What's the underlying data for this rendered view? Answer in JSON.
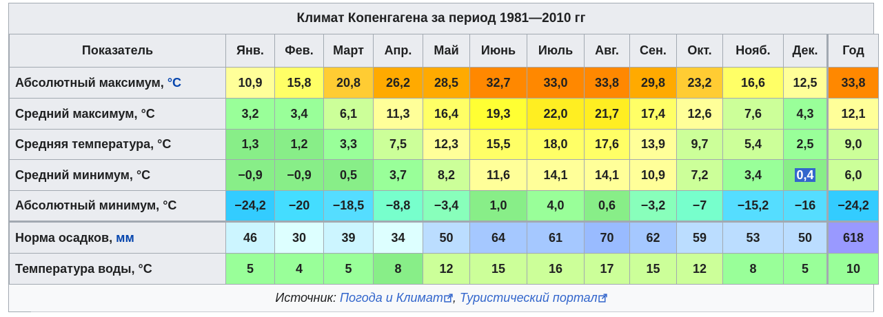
{
  "table": {
    "title": "Климат Копенгагена за период 1981—2010 гг",
    "header_label": "Показатель",
    "months": [
      "Янв.",
      "Фев.",
      "Март",
      "Апр.",
      "Май",
      "Июнь",
      "Июль",
      "Авг.",
      "Сен.",
      "Окт.",
      "Нояб.",
      "Дек."
    ],
    "year_label": "Год",
    "rows": [
      {
        "label": "Абсолютный максимум,",
        "unit": "°C",
        "unit_is_link": true,
        "values": [
          "10,9",
          "15,8",
          "20,8",
          "26,2",
          "28,5",
          "32,7",
          "33,0",
          "33,8",
          "29,8",
          "23,2",
          "16,6",
          "12,5"
        ],
        "year": "33,8",
        "colors": [
          "#ffff99",
          "#ffff66",
          "#ffcc33",
          "#ffaa00",
          "#ffaa00",
          "#ff8800",
          "#ff8800",
          "#ff8800",
          "#ffaa00",
          "#ffcc33",
          "#ffff66",
          "#ffff99"
        ],
        "year_color": "#ff8800"
      },
      {
        "label": "Средний максимум,",
        "unit": "°C",
        "unit_is_link": false,
        "values": [
          "3,2",
          "3,4",
          "6,1",
          "11,3",
          "16,4",
          "19,3",
          "22,0",
          "21,7",
          "17,4",
          "12,6",
          "7,6",
          "4,3"
        ],
        "year": "12,1",
        "colors": [
          "#99ff99",
          "#99ff99",
          "#ccff99",
          "#ffff99",
          "#ffff66",
          "#ffff33",
          "#ffee22",
          "#ffee22",
          "#ffff66",
          "#ffff99",
          "#ccff99",
          "#99ff99"
        ],
        "year_color": "#ffff99"
      },
      {
        "label": "Средняя температура,",
        "unit": "°C",
        "unit_is_link": false,
        "values": [
          "1,3",
          "1,2",
          "3,3",
          "7,5",
          "12,3",
          "15,5",
          "18,0",
          "17,6",
          "13,9",
          "9,7",
          "5,4",
          "2,5"
        ],
        "year": "9,0",
        "colors": [
          "#88ee88",
          "#88ee88",
          "#99ff99",
          "#ccff99",
          "#ffff99",
          "#ffff66",
          "#ffff66",
          "#ffff66",
          "#ffff99",
          "#ccff99",
          "#ccff99",
          "#99ff99"
        ],
        "year_color": "#ccff99"
      },
      {
        "label": "Средний минимум,",
        "unit": "°C",
        "unit_is_link": false,
        "values": [
          "−0,9",
          "−0,9",
          "0,5",
          "3,7",
          "8,2",
          "11,6",
          "14,1",
          "14,1",
          "10,9",
          "7,2",
          "3,4",
          "0,4"
        ],
        "year": "6,0",
        "selected_index": 11,
        "colors": [
          "#88ee88",
          "#88ee88",
          "#88ee88",
          "#99ff99",
          "#ccff99",
          "#ffff99",
          "#ffff99",
          "#ffff99",
          "#ffff99",
          "#ccff99",
          "#99ff99",
          "#88ee88"
        ],
        "year_color": "#ccff99"
      },
      {
        "label": "Абсолютный минимум,",
        "unit": "°C",
        "unit_is_link": false,
        "values": [
          "−24,2",
          "−20",
          "−18,5",
          "−8,8",
          "−3,4",
          "1,0",
          "4,0",
          "0,6",
          "−3,2",
          "−7",
          "−15,2",
          "−16"
        ],
        "year": "−24,2",
        "colors": [
          "#33ccff",
          "#44ddff",
          "#55ddff",
          "#77ffcc",
          "#88ffbb",
          "#88ee88",
          "#99ff99",
          "#88ee88",
          "#88ffbb",
          "#77ffcc",
          "#55ddff",
          "#55ddff"
        ],
        "year_color": "#33ccff"
      },
      {
        "label": "Норма осадков,",
        "unit": "мм",
        "unit_is_link": true,
        "values": [
          "46",
          "30",
          "39",
          "34",
          "50",
          "64",
          "61",
          "70",
          "62",
          "59",
          "53",
          "50"
        ],
        "year": "618",
        "colors": [
          "#ccf5ff",
          "#ddffff",
          "#ccf5ff",
          "#ddffff",
          "#bbddff",
          "#a5c8ff",
          "#a5c8ff",
          "#99bbff",
          "#a5c8ff",
          "#bbddff",
          "#bbddff",
          "#bbddff"
        ],
        "year_color": "#9999ff"
      },
      {
        "label": "Температура воды,",
        "unit": "°C",
        "unit_is_link": false,
        "values": [
          "5",
          "4",
          "5",
          "8",
          "12",
          "15",
          "16",
          "17",
          "15",
          "12",
          "8",
          "5"
        ],
        "year": "10",
        "colors": [
          "#99ff99",
          "#99ff99",
          "#99ff99",
          "#88ee88",
          "#ccff99",
          "#ccff99",
          "#ccff99",
          "#ccff99",
          "#ccff99",
          "#ccff99",
          "#99ff99",
          "#99ff99"
        ],
        "year_color": "#99ff99"
      }
    ],
    "source_label": "Источник:",
    "source_links": [
      "Погода и Климат",
      "Туристический портал"
    ],
    "source_separator": ","
  },
  "colors": {
    "header_bg": "#eaecf0",
    "border": "#a2a9b1",
    "link": "#3366cc",
    "unit_link": "#0645ad",
    "selection": "#3366cc"
  }
}
